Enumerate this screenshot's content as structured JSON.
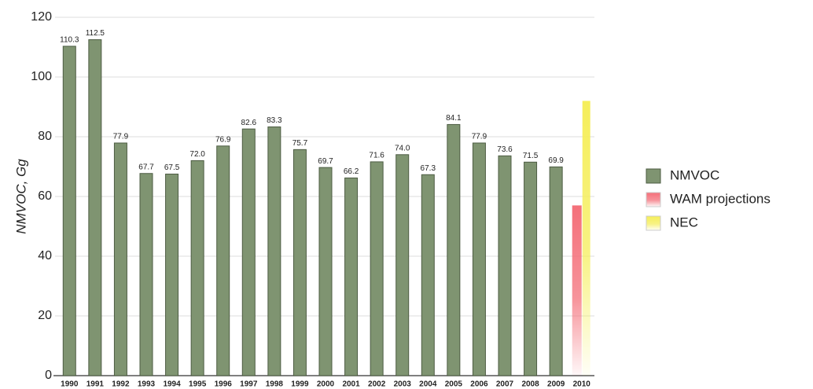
{
  "chart_data": {
    "type": "bar",
    "y_label": "NMVOC, Gg",
    "categories": [
      "1990",
      "1991",
      "1992",
      "1993",
      "1994",
      "1995",
      "1996",
      "1997",
      "1998",
      "1999",
      "2000",
      "2001",
      "2002",
      "2003",
      "2004",
      "2005",
      "2006",
      "2007",
      "2008",
      "2009",
      "2010"
    ],
    "series": [
      {
        "name": "NMVOC",
        "color": "#7f9471",
        "values": [
          110.3,
          112.5,
          77.9,
          67.7,
          67.5,
          72.0,
          76.9,
          82.6,
          83.3,
          75.7,
          69.7,
          66.2,
          71.6,
          74.0,
          67.3,
          84.1,
          77.9,
          73.6,
          71.5,
          69.9,
          null
        ],
        "value_labels": [
          "110.3",
          "112.5",
          "77.9",
          "67.7",
          "67.5",
          "72.0",
          "76.9",
          "82.6",
          "83.3",
          "75.7",
          "69.7",
          "66.2",
          "71.6",
          "74.0",
          "67.3",
          "84.1",
          "77.9",
          "73.6",
          "71.5",
          "69.9",
          null
        ]
      },
      {
        "name": "WAM projections",
        "color": "#f4707a",
        "values": [
          null,
          null,
          null,
          null,
          null,
          null,
          null,
          null,
          null,
          null,
          null,
          null,
          null,
          null,
          null,
          null,
          null,
          null,
          null,
          null,
          57
        ]
      },
      {
        "name": "NEC",
        "color": "#f5ee5a",
        "values": [
          null,
          null,
          null,
          null,
          null,
          null,
          null,
          null,
          null,
          null,
          null,
          null,
          null,
          null,
          null,
          null,
          null,
          null,
          null,
          null,
          92
        ]
      }
    ],
    "ylim": [
      0,
      120
    ],
    "yticks": [
      0,
      20,
      40,
      60,
      80,
      100,
      120
    ],
    "grid": true,
    "legend": "right"
  }
}
